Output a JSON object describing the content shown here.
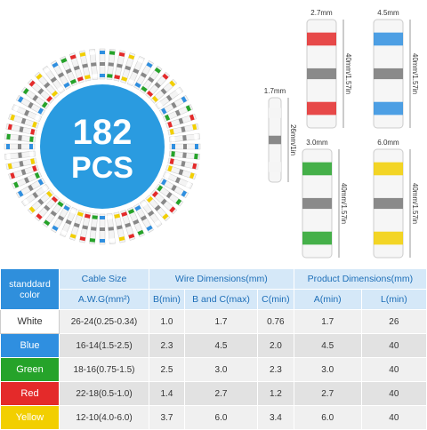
{
  "badge": {
    "count": "182",
    "unit": "PCS"
  },
  "connectors": [
    {
      "diameter": "1.7mm",
      "length": "26mm/1in"
    },
    {
      "diameter": "2.7mm",
      "length": "40mm/1.57in"
    },
    {
      "diameter": "4.5mm",
      "length": "40mm/1.57in"
    },
    {
      "diameter": "3.0mm",
      "length": "40mm/1.57in"
    },
    {
      "diameter": "6.0mm",
      "length": "40mm/1.57in"
    }
  ],
  "table": {
    "group_headers": [
      "standdard color",
      "Cable Size",
      "Wire Dimensions(mm)",
      "Product Dimensions(mm)"
    ],
    "sub_headers": [
      "A.W.G(mm²)",
      "B(min)",
      "B and C(max)",
      "C(min)",
      "A(min)",
      "L(min)"
    ],
    "rows": [
      [
        "White",
        "26-24(0.25-0.34)",
        "1.0",
        "1.7",
        "0.76",
        "1.7",
        "26"
      ],
      [
        "Blue",
        "16-14(1.5-2.5)",
        "2.3",
        "4.5",
        "2.0",
        "4.5",
        "40"
      ],
      [
        "Green",
        "18-16(0.75-1.5)",
        "2.5",
        "3.0",
        "2.3",
        "3.0",
        "40"
      ],
      [
        "Red",
        "22-18(0.5-1.0)",
        "1.4",
        "2.7",
        "1.2",
        "2.7",
        "40"
      ],
      [
        "Yellow",
        "12-10(4.0-6.0)",
        "3.7",
        "6.0",
        "3.4",
        "6.0",
        "40"
      ]
    ]
  }
}
